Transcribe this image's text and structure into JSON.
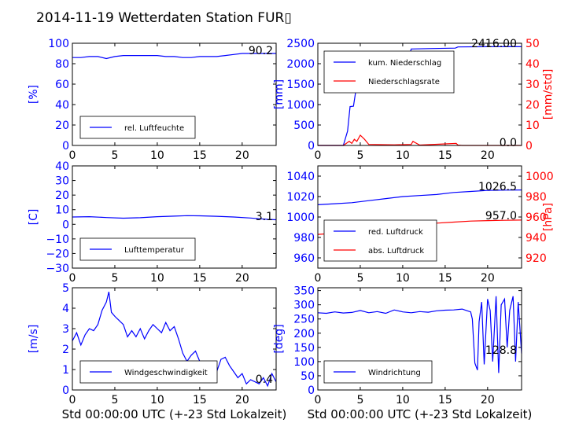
{
  "title": "2014-11-19 Wetterdaten Station FUR▯",
  "colors": {
    "primary": "#0000ff",
    "secondary": "#ff0000",
    "axis": "#000000"
  },
  "chart_data": [
    {
      "type": "line",
      "ylabel": "[%]",
      "xlim": [
        0,
        24
      ],
      "ylim": [
        0,
        100
      ],
      "xticks": [
        "0",
        "5",
        "10",
        "15",
        "20"
      ],
      "yticks": [
        "0",
        "20",
        "40",
        "60",
        "80",
        "100"
      ],
      "legend": [
        "rel. Luftfeuchte"
      ],
      "legend_placement": "lower-left",
      "last_value": "90.2",
      "series": [
        {
          "name": "rel. Luftfeuchte",
          "x": [
            0,
            1,
            2,
            3,
            4,
            5,
            6,
            7,
            8,
            9,
            10,
            11,
            12,
            13,
            14,
            15,
            16,
            17,
            18,
            19,
            20,
            21,
            22,
            23,
            24
          ],
          "values": [
            86,
            86,
            87,
            87,
            85,
            87,
            88,
            88,
            88,
            88,
            88,
            87,
            87,
            86,
            86,
            87,
            87,
            87,
            88,
            89,
            90,
            90,
            90,
            90,
            90
          ]
        }
      ]
    },
    {
      "type": "line",
      "ylabel": "[mm]",
      "y2label": "[mm/std]",
      "xlim": [
        0,
        24
      ],
      "ylim": [
        0,
        2500
      ],
      "y2lim": [
        0,
        50
      ],
      "xticks": [
        "0",
        "5",
        "10",
        "15",
        "20"
      ],
      "yticks": [
        "0",
        "500",
        "1000",
        "1500",
        "2000",
        "2500"
      ],
      "y2ticks": [
        "0",
        "10",
        "20",
        "30",
        "40",
        "50"
      ],
      "legend": [
        "kum. Niederschlag",
        "Niederschlagsrate"
      ],
      "legend_placement": "upper-left",
      "last_value": "2416.00",
      "last_value2": "0.0",
      "series": [
        {
          "name": "kum. Niederschlag",
          "x": [
            0,
            3,
            3.5,
            3.8,
            4.2,
            4.6,
            5.0,
            5.2,
            6,
            8,
            10.8,
            11,
            13,
            16.2,
            16.5,
            20,
            24
          ],
          "values": [
            0,
            0,
            350,
            950,
            960,
            1500,
            2050,
            2100,
            2130,
            2150,
            2200,
            2360,
            2370,
            2380,
            2410,
            2416,
            2416
          ]
        },
        {
          "name": "Niederschlagsrate",
          "axis": "right",
          "x": [
            0,
            3,
            3.7,
            4.0,
            4.3,
            4.6,
            5.0,
            5.5,
            6,
            9,
            11,
            11.2,
            12,
            16.3,
            16.5,
            17,
            24
          ],
          "values": [
            0,
            0,
            2,
            1,
            3,
            2,
            5,
            3,
            0.5,
            0.3,
            0.5,
            2,
            0.2,
            1,
            0.2,
            0,
            0
          ]
        }
      ]
    },
    {
      "type": "line",
      "ylabel": "[C]",
      "xlim": [
        0,
        24
      ],
      "ylim": [
        -30,
        40
      ],
      "xticks": [
        "0",
        "5",
        "10",
        "15",
        "20"
      ],
      "yticks": [
        "−30",
        "−20",
        "−10",
        "0",
        "10",
        "20",
        "30",
        "40"
      ],
      "legend": [
        "Lufttemperatur"
      ],
      "legend_placement": "lower-left",
      "last_value": "3.1",
      "series": [
        {
          "name": "Lufttemperatur",
          "x": [
            0,
            2,
            4,
            6,
            8,
            10,
            12,
            13.5,
            15,
            17,
            19,
            21,
            22,
            23,
            24
          ],
          "values": [
            5.0,
            5.2,
            4.6,
            4.2,
            4.5,
            5.2,
            5.6,
            5.9,
            5.8,
            5.5,
            5.0,
            4.3,
            3.8,
            3.4,
            3.1
          ]
        }
      ]
    },
    {
      "type": "line",
      "ylabel": "",
      "y2label": "[hPa]",
      "xlim": [
        0,
        24
      ],
      "ylim": [
        950,
        1050
      ],
      "y2lim": [
        910,
        1010
      ],
      "xticks": [
        "0",
        "5",
        "10",
        "15",
        "20"
      ],
      "yticks": [
        "960",
        "980",
        "1000",
        "1020",
        "1040"
      ],
      "y2ticks": [
        "920",
        "940",
        "960",
        "980",
        "1000"
      ],
      "legend": [
        "red. Luftdruck",
        "abs. Luftdruck"
      ],
      "legend_placement": "lower-left",
      "last_value": "1026.5",
      "last_value2": "957.0",
      "series": [
        {
          "name": "red. Luftdruck",
          "x": [
            0,
            2,
            4,
            6,
            8,
            10,
            12,
            14,
            16,
            18,
            20,
            22,
            24
          ],
          "values": [
            1012,
            1013,
            1014,
            1016,
            1018,
            1020,
            1021,
            1022,
            1024,
            1025,
            1026,
            1026.3,
            1026.5
          ]
        },
        {
          "name": "abs. Luftdruck",
          "axis": "right",
          "x": [
            0,
            2,
            4,
            6,
            8,
            10,
            12,
            14,
            16,
            18,
            20,
            22,
            24
          ],
          "values": [
            943,
            944,
            946,
            948,
            950,
            952,
            953,
            954,
            955,
            956,
            956.5,
            956.8,
            957
          ]
        }
      ]
    },
    {
      "type": "line",
      "ylabel": "[m/s]",
      "xlabel": "Std 00:00:00 UTC (+-23 Std Lokalzeit)",
      "xlim": [
        0,
        24
      ],
      "ylim": [
        0,
        5
      ],
      "xticks": [
        "0",
        "5",
        "10",
        "15",
        "20"
      ],
      "yticks": [
        "0",
        "1",
        "2",
        "3",
        "4",
        "5"
      ],
      "legend": [
        "Windgeschwindigkeit"
      ],
      "legend_placement": "lower-left",
      "last_value": "0.4",
      "series": [
        {
          "name": "Windgeschwindigkeit",
          "x": [
            0,
            0.5,
            1,
            1.5,
            2,
            2.5,
            3,
            3.5,
            4,
            4.3,
            4.6,
            5,
            5.5,
            6,
            6.5,
            7,
            7.5,
            8,
            8.5,
            9,
            9.5,
            10,
            10.5,
            11,
            11.5,
            12,
            12.5,
            13,
            13.5,
            14,
            14.5,
            15,
            15.5,
            16,
            16.5,
            17,
            17.5,
            18,
            18.5,
            19,
            19.5,
            20,
            20.5,
            21,
            21.5,
            22,
            22.5,
            23,
            23.5,
            24
          ],
          "values": [
            2.4,
            2.8,
            2.2,
            2.7,
            3.0,
            2.9,
            3.2,
            3.9,
            4.3,
            4.8,
            3.8,
            3.6,
            3.4,
            3.2,
            2.6,
            2.9,
            2.6,
            3.0,
            2.5,
            2.9,
            3.2,
            3.0,
            2.8,
            3.3,
            2.9,
            3.1,
            2.5,
            1.8,
            1.4,
            1.7,
            1.9,
            1.4,
            1.1,
            1.3,
            1.2,
            0.9,
            1.5,
            1.6,
            1.2,
            0.9,
            0.6,
            0.8,
            0.3,
            0.5,
            0.4,
            0.3,
            0.6,
            0.2,
            0.8,
            0.4
          ]
        }
      ]
    },
    {
      "type": "line",
      "ylabel": "[deg]",
      "xlabel": "Std 00:00:00 UTC (+-23 Std Lokalzeit)",
      "xlim": [
        0,
        24
      ],
      "ylim": [
        0,
        360
      ],
      "xticks": [
        "0",
        "5",
        "10",
        "15",
        "20"
      ],
      "yticks": [
        "0",
        "50",
        "100",
        "150",
        "200",
        "250",
        "300",
        "350"
      ],
      "legend": [
        "Windrichtung"
      ],
      "legend_placement": "lower-left",
      "last_value": "128.8",
      "series": [
        {
          "name": "Windrichtung",
          "x": [
            0,
            1,
            2,
            3,
            4,
            5,
            6,
            7,
            8,
            9,
            10,
            11,
            12,
            13,
            14,
            15,
            16,
            17,
            17.5,
            18,
            18.2,
            18.5,
            18.8,
            19,
            19.3,
            19.6,
            20,
            20.3,
            20.6,
            21,
            21.3,
            21.6,
            22,
            22.3,
            22.6,
            23,
            23.3,
            23.6,
            24
          ],
          "values": [
            272,
            270,
            275,
            271,
            273,
            280,
            272,
            276,
            270,
            282,
            275,
            272,
            276,
            274,
            279,
            281,
            282,
            285,
            280,
            275,
            250,
            95,
            70,
            240,
            310,
            90,
            320,
            280,
            100,
            330,
            60,
            300,
            320,
            150,
            280,
            330,
            100,
            310,
            128.8
          ]
        }
      ]
    }
  ]
}
